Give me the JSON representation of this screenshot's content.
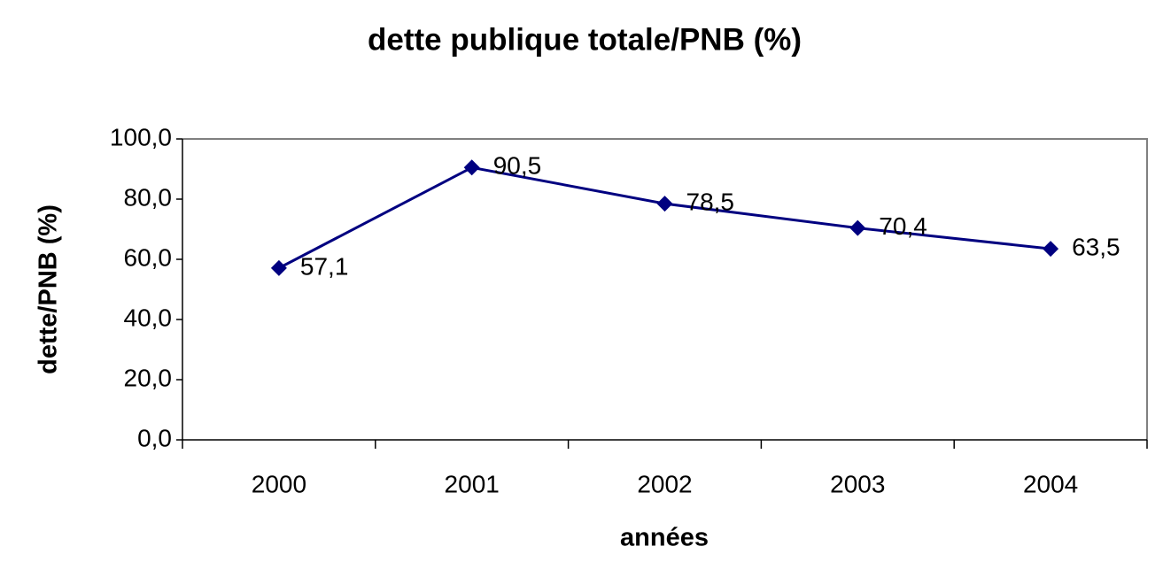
{
  "chart_data": {
    "type": "line",
    "title": "dette publique totale/PNB (%)",
    "x_label": "années",
    "y_label": "dette/PNB (%)",
    "categories": [
      "2000",
      "2001",
      "2002",
      "2003",
      "2004"
    ],
    "series": [
      {
        "color": "#000080",
        "values": [
          57.1,
          90.5,
          78.5,
          70.4,
          63.5
        ],
        "value_labels": [
          "57,1",
          "90,5",
          "78,5",
          "70,4",
          "63,5"
        ]
      }
    ],
    "ylim": [
      0,
      100
    ],
    "yticks": [
      {
        "value": 0,
        "label": "0,0"
      },
      {
        "value": 20,
        "label": "20,0"
      },
      {
        "value": 40,
        "label": "40,0"
      },
      {
        "value": 60,
        "label": "60,0"
      },
      {
        "value": 80,
        "label": "80,0"
      },
      {
        "value": 100,
        "label": "100,0"
      }
    ],
    "grid": false
  }
}
